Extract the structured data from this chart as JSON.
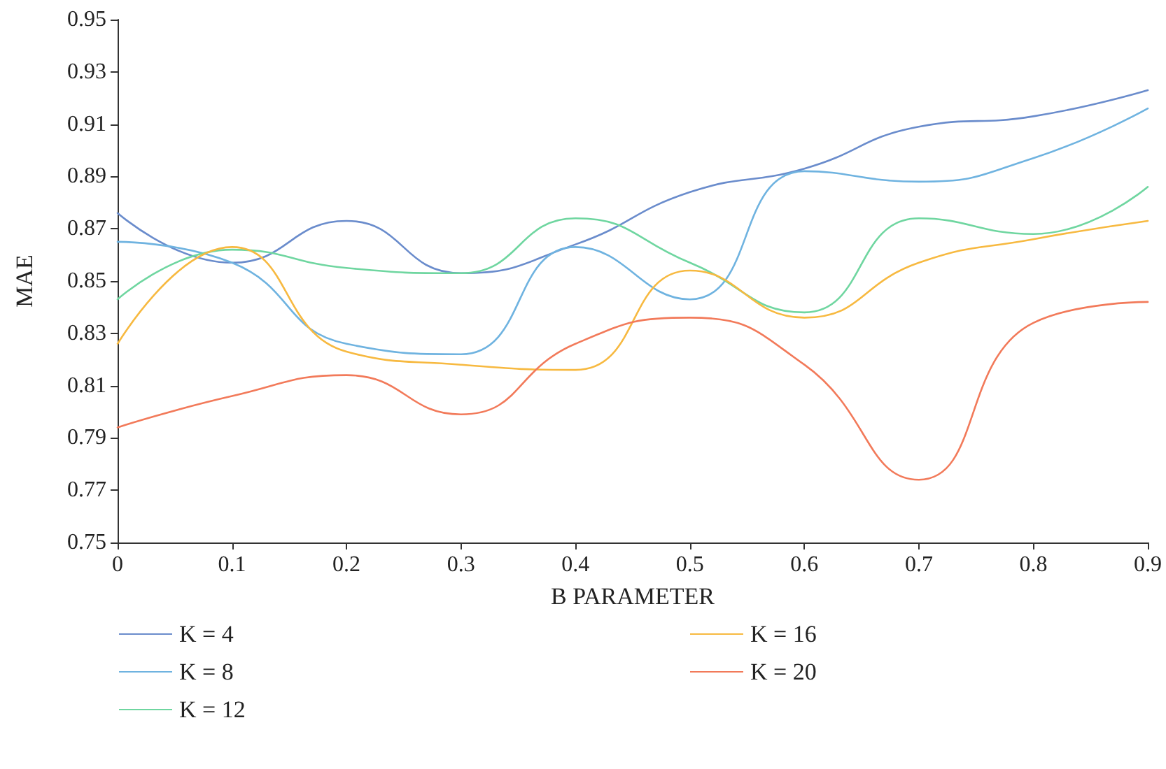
{
  "chart_data": {
    "type": "line",
    "xlabel": "B PARAMETER",
    "ylabel": "MAE",
    "x": [
      0,
      0.1,
      0.2,
      0.3,
      0.4,
      0.5,
      0.6,
      0.7,
      0.8,
      0.9
    ],
    "series": [
      {
        "name": "K = 4",
        "color": "#6a8ccc",
        "values": [
          0.876,
          0.857,
          0.873,
          0.853,
          0.864,
          0.884,
          0.893,
          0.909,
          0.913,
          0.923
        ]
      },
      {
        "name": "K = 8",
        "color": "#6fb3e0",
        "values": [
          0.865,
          0.857,
          0.826,
          0.822,
          0.863,
          0.843,
          0.892,
          0.888,
          0.897,
          0.916
        ]
      },
      {
        "name": "K = 12",
        "color": "#6fd6a0",
        "values": [
          0.843,
          0.862,
          0.855,
          0.853,
          0.874,
          0.857,
          0.838,
          0.874,
          0.868,
          0.886
        ]
      },
      {
        "name": "K = 16",
        "color": "#f7b940",
        "values": [
          0.826,
          0.863,
          0.823,
          0.818,
          0.816,
          0.854,
          0.836,
          0.857,
          0.866,
          0.873
        ]
      },
      {
        "name": "K = 20",
        "color": "#f27a5a",
        "values": [
          0.794,
          0.806,
          0.814,
          0.799,
          0.826,
          0.836,
          0.818,
          0.774,
          0.834,
          0.842
        ]
      }
    ],
    "xlim": [
      0,
      0.9
    ],
    "xticks": [
      0,
      0.1,
      0.2,
      0.3,
      0.4,
      0.5,
      0.6,
      0.7,
      0.8,
      0.9
    ],
    "ylim": [
      0.75,
      0.95
    ],
    "yticks": [
      0.75,
      0.77,
      0.79,
      0.81,
      0.83,
      0.85,
      0.87,
      0.89,
      0.91,
      0.93,
      0.95
    ],
    "grid": false,
    "legend": "bottom",
    "marker": "none",
    "line_style": "solid"
  }
}
